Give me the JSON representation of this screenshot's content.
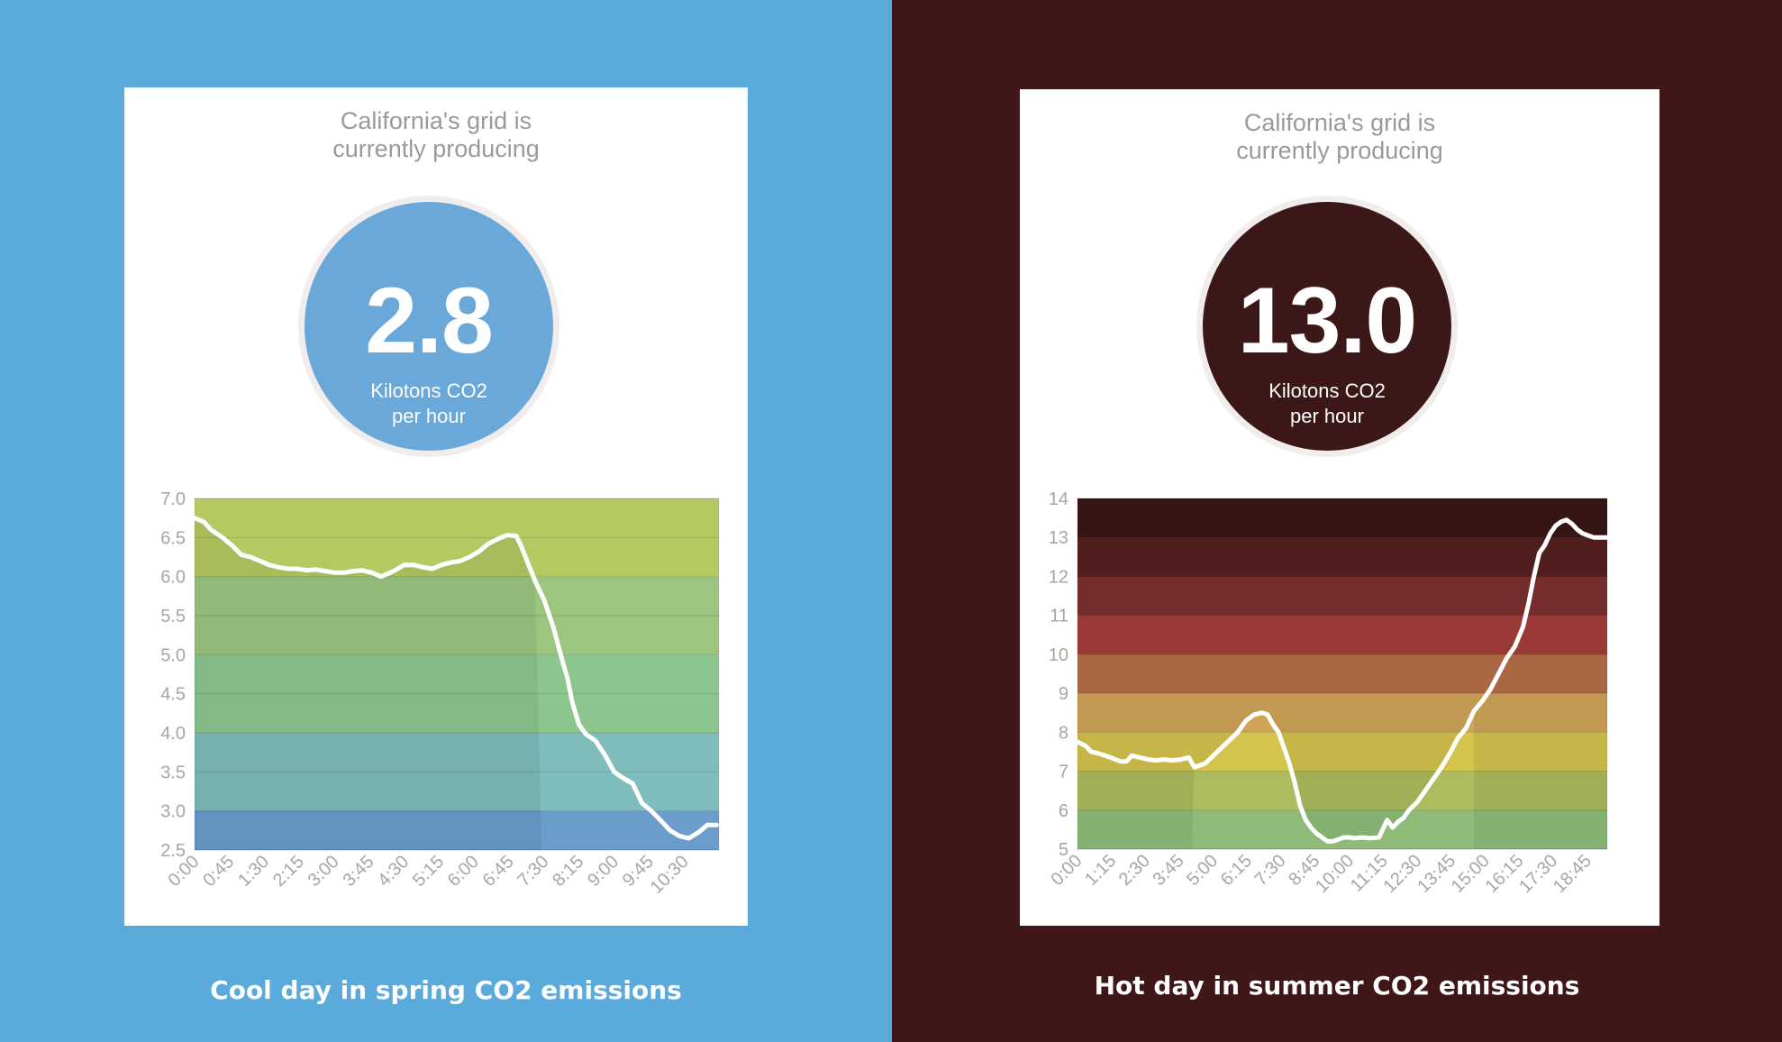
{
  "panels": [
    {
      "headline": [
        "California's grid is",
        "currently producing"
      ],
      "badge_value": "2.8",
      "badge_unit": [
        "Kilotons CO2",
        "per hour"
      ],
      "caption": "Cool day in spring CO2 emissions"
    },
    {
      "headline": [
        "California's grid is",
        "currently producing"
      ],
      "badge_value": "13.0",
      "badge_unit": [
        "Kilotons CO2",
        "per hour"
      ],
      "caption": "Hot day in summer CO2 emissions"
    }
  ],
  "colors": {
    "left_background": "#5aaadc",
    "right_background": "#3f1718",
    "left_badge": "#6aa8da",
    "right_badge": "#3b1717",
    "line": "#ffffff"
  },
  "chart_data": [
    {
      "type": "line",
      "title": "",
      "xlabel": "",
      "ylabel": "",
      "ylim": [
        2.5,
        7.0
      ],
      "y_ticks": [
        "7.0",
        "6.5",
        "6.0",
        "5.5",
        "5.0",
        "4.5",
        "4.0",
        "3.5",
        "3.0",
        "2.5"
      ],
      "x_tick_labels": [
        "0:00",
        "0:45",
        "1:30",
        "2:15",
        "3:00",
        "3:45",
        "4:30",
        "5:15",
        "6:00",
        "6:45",
        "7:30",
        "8:15",
        "9:00",
        "9:45",
        "10:30"
      ],
      "x_range_hours": [
        0,
        11.25
      ],
      "bands": [
        {
          "from": 6.0,
          "to": 7.0,
          "color": "#b5c962"
        },
        {
          "from": 5.0,
          "to": 6.0,
          "color": "#9cc680"
        },
        {
          "from": 4.0,
          "to": 5.0,
          "color": "#8cc68f"
        },
        {
          "from": 3.0,
          "to": 4.0,
          "color": "#7fbdbc"
        },
        {
          "from": 2.5,
          "to": 3.0,
          "color": "#6a9ccc"
        }
      ],
      "shaded_until_hours": 7.45,
      "series": [
        {
          "name": "CO2 emissions",
          "x": [
            0,
            0.2,
            0.35,
            0.6,
            0.8,
            1.0,
            1.2,
            1.4,
            1.6,
            1.8,
            2.0,
            2.2,
            2.4,
            2.6,
            2.8,
            3.0,
            3.2,
            3.4,
            3.6,
            3.8,
            4.0,
            4.2,
            4.3,
            4.5,
            4.7,
            4.9,
            5.1,
            5.3,
            5.5,
            5.7,
            5.9,
            6.1,
            6.3,
            6.5,
            6.7,
            6.9,
            7.0,
            7.1,
            7.3,
            7.5,
            7.7,
            7.9,
            8.0,
            8.1,
            8.25,
            8.4,
            8.6,
            8.8,
            9.0,
            9.2,
            9.4,
            9.6,
            9.8,
            10.0,
            10.2,
            10.4,
            10.6,
            10.8,
            11.0,
            11.2
          ],
          "y": [
            6.75,
            6.7,
            6.6,
            6.5,
            6.4,
            6.28,
            6.25,
            6.2,
            6.15,
            6.12,
            6.1,
            6.1,
            6.08,
            6.09,
            6.07,
            6.05,
            6.05,
            6.07,
            6.08,
            6.05,
            6.0,
            6.05,
            6.08,
            6.15,
            6.15,
            6.12,
            6.1,
            6.15,
            6.18,
            6.2,
            6.25,
            6.32,
            6.42,
            6.48,
            6.53,
            6.52,
            6.4,
            6.25,
            5.95,
            5.7,
            5.35,
            4.9,
            4.7,
            4.4,
            4.1,
            3.98,
            3.9,
            3.72,
            3.5,
            3.42,
            3.35,
            3.1,
            3.0,
            2.88,
            2.75,
            2.68,
            2.65,
            2.72,
            2.82,
            2.82
          ]
        }
      ]
    },
    {
      "type": "line",
      "title": "",
      "xlabel": "",
      "ylabel": "",
      "ylim": [
        5,
        14
      ],
      "y_ticks": [
        "14",
        "13",
        "12",
        "11",
        "10",
        "9",
        "8",
        "7",
        "6",
        "5"
      ],
      "x_tick_labels": [
        "0:00",
        "1:15",
        "2:30",
        "3:45",
        "5:00",
        "6:15",
        "7:30",
        "8:45",
        "10:00",
        "11:15",
        "12:30",
        "13:45",
        "15:00",
        "16:15",
        "17:30",
        "18:45"
      ],
      "x_range_hours": [
        0,
        19.5
      ],
      "bands": [
        {
          "from": 13,
          "to": 14,
          "color": "#3a1717"
        },
        {
          "from": 12,
          "to": 13,
          "color": "#572121"
        },
        {
          "from": 11,
          "to": 12,
          "color": "#7e3031"
        },
        {
          "from": 10,
          "to": 11,
          "color": "#a53f3b"
        },
        {
          "from": 9,
          "to": 10,
          "color": "#b66f48"
        },
        {
          "from": 8,
          "to": 9,
          "color": "#d0a456"
        },
        {
          "from": 7,
          "to": 8,
          "color": "#d4c34d"
        },
        {
          "from": 6,
          "to": 7,
          "color": "#aebb5e"
        },
        {
          "from": 5,
          "to": 6,
          "color": "#8ebc78"
        }
      ],
      "lit_from_hours": 4.2,
      "lit_until_hours": 14.6,
      "series": [
        {
          "name": "CO2 emissions",
          "x": [
            0,
            0.3,
            0.5,
            0.8,
            1.1,
            1.4,
            1.6,
            1.8,
            2.0,
            2.3,
            2.6,
            2.9,
            3.2,
            3.5,
            3.8,
            4.1,
            4.3,
            4.5,
            4.7,
            5.0,
            5.3,
            5.6,
            5.9,
            6.2,
            6.5,
            6.8,
            7.0,
            7.2,
            7.4,
            7.6,
            7.8,
            8.0,
            8.2,
            8.4,
            8.6,
            8.8,
            9.0,
            9.2,
            9.4,
            9.6,
            9.8,
            10.0,
            10.2,
            10.5,
            10.8,
            11.1,
            11.4,
            11.6,
            11.8,
            12.0,
            12.2,
            12.5,
            12.8,
            13.1,
            13.4,
            13.7,
            14.0,
            14.3,
            14.6,
            14.9,
            15.2,
            15.5,
            15.8,
            16.1,
            16.4,
            16.6,
            16.8,
            17.0,
            17.2,
            17.4,
            17.6,
            17.8,
            18.0,
            18.2,
            18.4,
            18.6,
            18.8,
            19.0,
            19.2,
            19.4,
            19.5
          ],
          "y": [
            7.75,
            7.65,
            7.5,
            7.45,
            7.38,
            7.3,
            7.25,
            7.25,
            7.4,
            7.35,
            7.3,
            7.28,
            7.3,
            7.28,
            7.3,
            7.35,
            7.1,
            7.15,
            7.2,
            7.4,
            7.6,
            7.8,
            8.0,
            8.3,
            8.45,
            8.5,
            8.45,
            8.2,
            8.0,
            7.6,
            7.2,
            6.7,
            6.1,
            5.75,
            5.55,
            5.4,
            5.3,
            5.2,
            5.2,
            5.25,
            5.3,
            5.3,
            5.28,
            5.3,
            5.28,
            5.3,
            5.75,
            5.55,
            5.7,
            5.8,
            6.0,
            6.2,
            6.5,
            6.8,
            7.1,
            7.45,
            7.85,
            8.1,
            8.55,
            8.8,
            9.1,
            9.5,
            9.9,
            10.2,
            10.7,
            11.3,
            12.0,
            12.6,
            12.8,
            13.1,
            13.3,
            13.4,
            13.45,
            13.35,
            13.2,
            13.1,
            13.05,
            13.0,
            13.0,
            13.0,
            13.0
          ]
        }
      ]
    }
  ]
}
